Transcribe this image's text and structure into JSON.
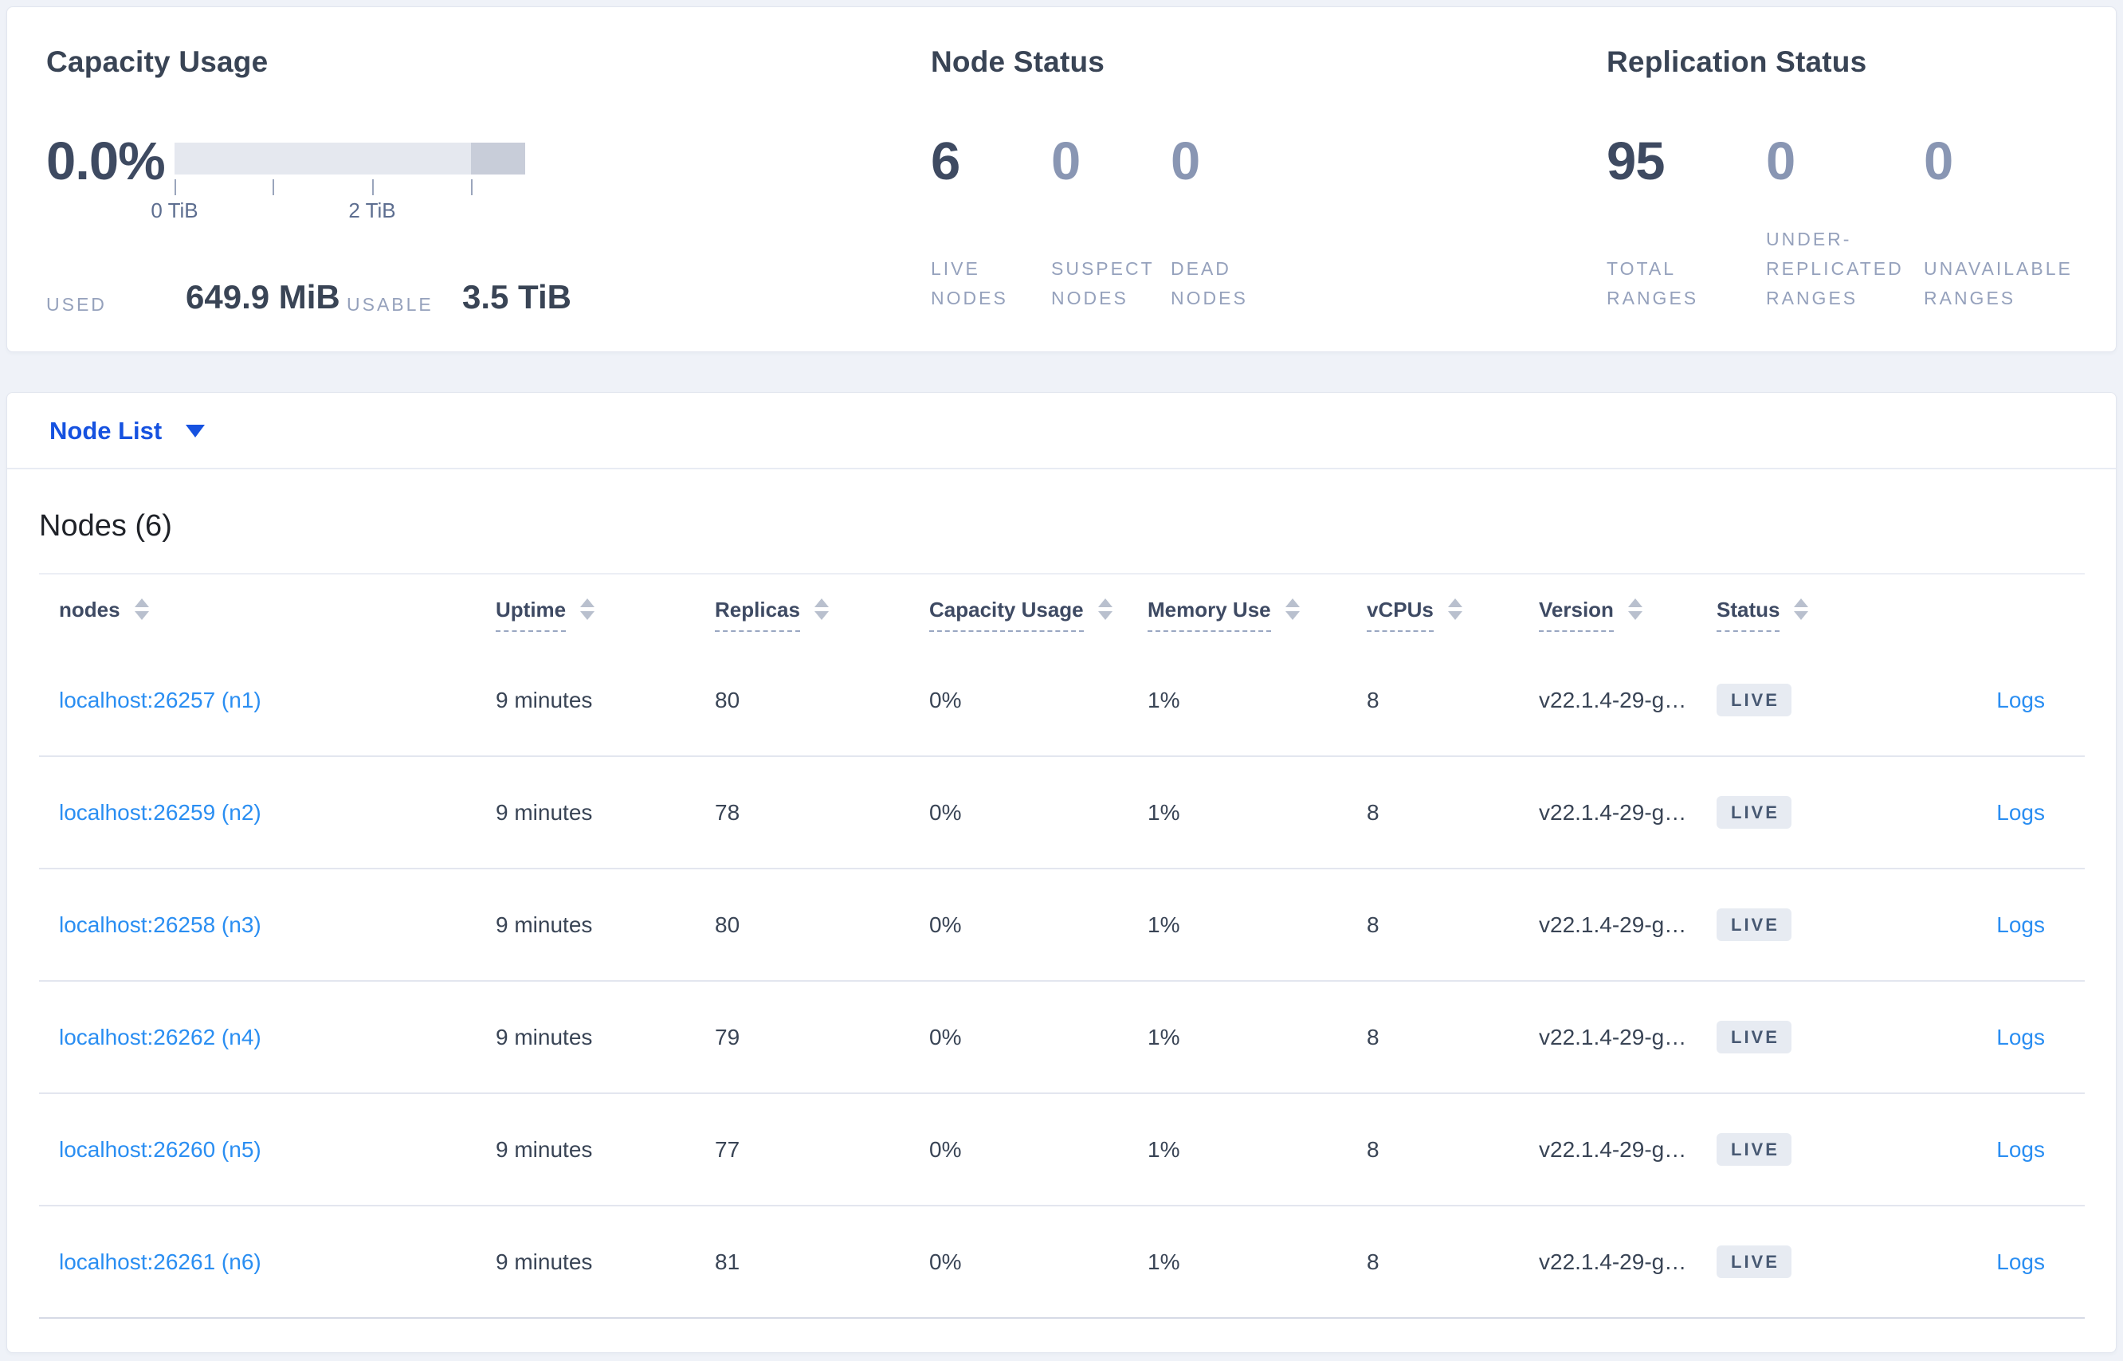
{
  "summary": {
    "capacity_usage": {
      "title": "Capacity Usage",
      "percent": "0.0%",
      "gauge_tick_labels": [
        "0 TiB",
        "2 TiB"
      ],
      "used_label": "USED",
      "used_value": "649.9 MiB",
      "usable_label": "USABLE",
      "usable_value": "3.5 TiB"
    },
    "node_status": {
      "title": "Node Status",
      "metrics": [
        {
          "value": "6",
          "label": "LIVE NODES"
        },
        {
          "value": "0",
          "label": "SUSPECT NODES"
        },
        {
          "value": "0",
          "label": "DEAD NODES"
        }
      ]
    },
    "replication_status": {
      "title": "Replication Status",
      "metrics": [
        {
          "value": "95",
          "label": "TOTAL RANGES"
        },
        {
          "value": "0",
          "label": "UNDER-REPLICATED RANGES"
        },
        {
          "value": "0",
          "label": "UNAVAILABLE RANGES"
        }
      ]
    }
  },
  "view_selector": {
    "label": "Node List"
  },
  "nodes_table": {
    "title": "Nodes (6)",
    "columns": [
      "nodes",
      "Uptime",
      "Replicas",
      "Capacity Usage",
      "Memory Use",
      "vCPUs",
      "Version",
      "Status"
    ],
    "rows": [
      {
        "address": "localhost:26257 (n1)",
        "uptime": "9 minutes",
        "replicas": "80",
        "capacity": "0%",
        "memory": "1%",
        "vcpus": "8",
        "version": "v22.1.4-29-g…",
        "status": "LIVE",
        "logs": "Logs"
      },
      {
        "address": "localhost:26259 (n2)",
        "uptime": "9 minutes",
        "replicas": "78",
        "capacity": "0%",
        "memory": "1%",
        "vcpus": "8",
        "version": "v22.1.4-29-g…",
        "status": "LIVE",
        "logs": "Logs"
      },
      {
        "address": "localhost:26258 (n3)",
        "uptime": "9 minutes",
        "replicas": "80",
        "capacity": "0%",
        "memory": "1%",
        "vcpus": "8",
        "version": "v22.1.4-29-g…",
        "status": "LIVE",
        "logs": "Logs"
      },
      {
        "address": "localhost:26262 (n4)",
        "uptime": "9 minutes",
        "replicas": "79",
        "capacity": "0%",
        "memory": "1%",
        "vcpus": "8",
        "version": "v22.1.4-29-g…",
        "status": "LIVE",
        "logs": "Logs"
      },
      {
        "address": "localhost:26260 (n5)",
        "uptime": "9 minutes",
        "replicas": "77",
        "capacity": "0%",
        "memory": "1%",
        "vcpus": "8",
        "version": "v22.1.4-29-g…",
        "status": "LIVE",
        "logs": "Logs"
      },
      {
        "address": "localhost:26261 (n6)",
        "uptime": "9 minutes",
        "replicas": "81",
        "capacity": "0%",
        "memory": "1%",
        "vcpus": "8",
        "version": "v22.1.4-29-g…",
        "status": "LIVE",
        "logs": "Logs"
      }
    ]
  },
  "colors": {
    "page_bg": "#eff2f8",
    "primary_text": "#394455",
    "muted_metric": "#8996b3",
    "caps_label": "#95a1bc",
    "table_link_blue": "#2a8ef2",
    "selector_link_blue": "#1652e0",
    "badge_bg": "#e7ebf2",
    "badge_text": "#475872",
    "gauge_track": "#e5e8ef",
    "gauge_reserved": "#c8cdd9"
  }
}
